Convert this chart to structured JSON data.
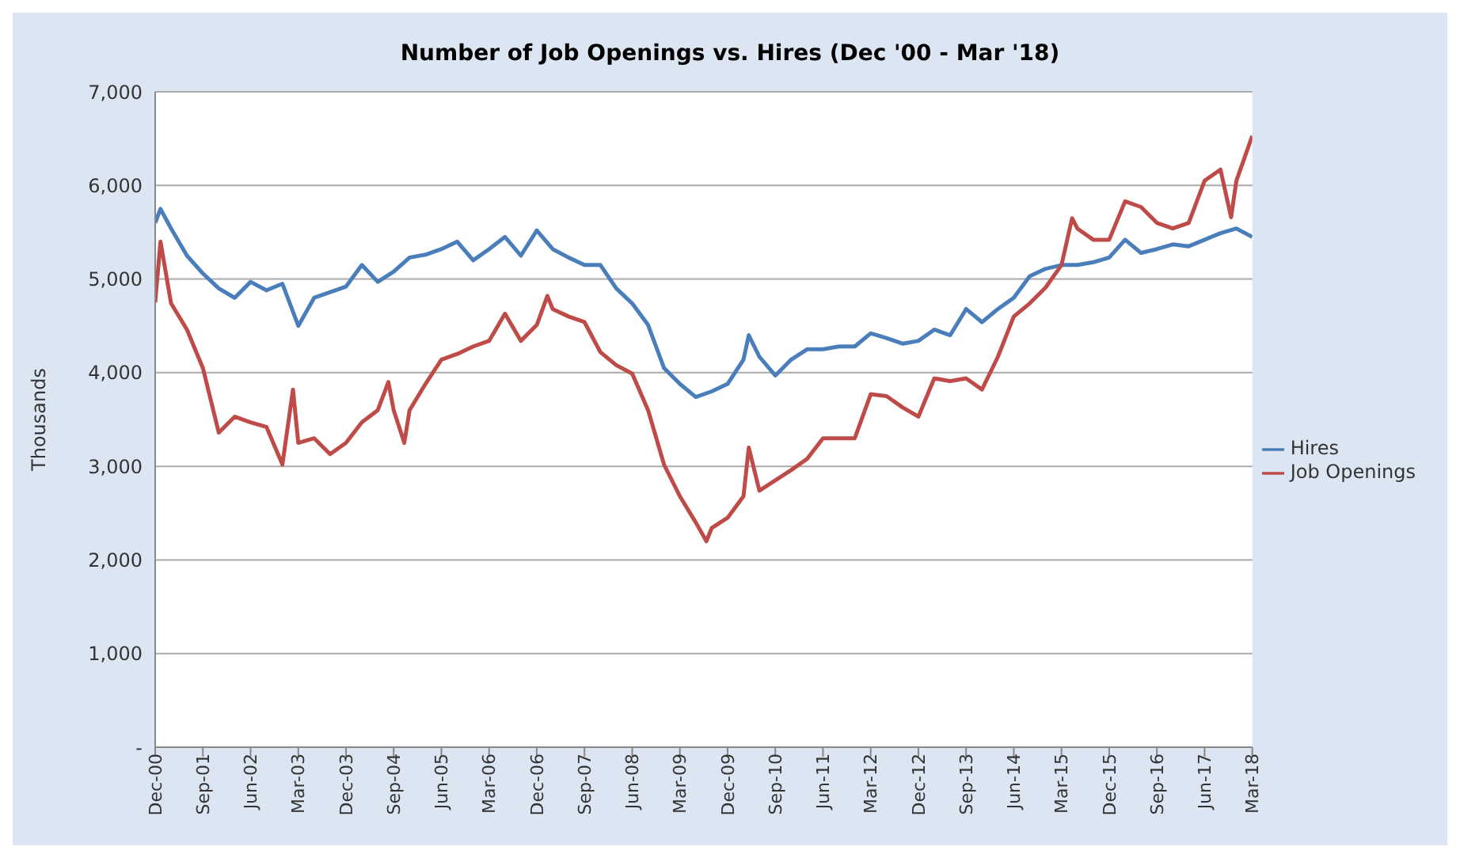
{
  "chart_data": {
    "type": "line",
    "title": "Number of Job Openings vs. Hires (Dec '00 - Mar '18)",
    "ylabel": "Thousands",
    "xlim": [
      "2000-12",
      "2018-03"
    ],
    "xticks": [
      {
        "value": "2000-12",
        "label": "Dec-00"
      },
      {
        "value": "2001-09",
        "label": "Sep-01"
      },
      {
        "value": "2002-06",
        "label": "Jun-02"
      },
      {
        "value": "2003-03",
        "label": "Mar-03"
      },
      {
        "value": "2003-12",
        "label": "Dec-03"
      },
      {
        "value": "2004-09",
        "label": "Sep-04"
      },
      {
        "value": "2005-06",
        "label": "Jun-05"
      },
      {
        "value": "2006-03",
        "label": "Mar-06"
      },
      {
        "value": "2006-12",
        "label": "Dec-06"
      },
      {
        "value": "2007-09",
        "label": "Sep-07"
      },
      {
        "value": "2008-06",
        "label": "Jun-08"
      },
      {
        "value": "2009-03",
        "label": "Mar-09"
      },
      {
        "value": "2009-12",
        "label": "Dec-09"
      },
      {
        "value": "2010-09",
        "label": "Sep-10"
      },
      {
        "value": "2011-06",
        "label": "Jun-11"
      },
      {
        "value": "2012-03",
        "label": "Mar-12"
      },
      {
        "value": "2012-12",
        "label": "Dec-12"
      },
      {
        "value": "2013-09",
        "label": "Sep-13"
      },
      {
        "value": "2014-06",
        "label": "Jun-14"
      },
      {
        "value": "2015-03",
        "label": "Mar-15"
      },
      {
        "value": "2015-12",
        "label": "Dec-15"
      },
      {
        "value": "2016-09",
        "label": "Sep-16"
      },
      {
        "value": "2017-06",
        "label": "Jun-17"
      },
      {
        "value": "2018-03",
        "label": "Mar-18"
      }
    ],
    "ylim": [
      0,
      7000
    ],
    "yticks": [
      {
        "value": 0,
        "label": "-"
      },
      {
        "value": 1000,
        "label": "1,000"
      },
      {
        "value": 2000,
        "label": "2,000"
      },
      {
        "value": 3000,
        "label": "3,000"
      },
      {
        "value": 4000,
        "label": "4,000"
      },
      {
        "value": 5000,
        "label": "5,000"
      },
      {
        "value": 6000,
        "label": "6,000"
      },
      {
        "value": 7000,
        "label": "7,000"
      }
    ],
    "grid": "y",
    "legend": "right",
    "marker": "none",
    "line_style": "solid",
    "series": [
      {
        "name": "Hires",
        "color": "#4a7ebb",
        "x": [
          "2000-12",
          "2001-01",
          "2001-03",
          "2001-06",
          "2001-09",
          "2001-12",
          "2002-03",
          "2002-06",
          "2002-09",
          "2002-12",
          "2003-03",
          "2003-06",
          "2003-09",
          "2003-12",
          "2004-03",
          "2004-06",
          "2004-09",
          "2004-12",
          "2005-03",
          "2005-06",
          "2005-09",
          "2005-12",
          "2006-03",
          "2006-06",
          "2006-09",
          "2006-12",
          "2007-03",
          "2007-06",
          "2007-09",
          "2007-12",
          "2008-03",
          "2008-06",
          "2008-09",
          "2008-12",
          "2009-03",
          "2009-06",
          "2009-09",
          "2009-12",
          "2010-03",
          "2010-04",
          "2010-06",
          "2010-09",
          "2010-12",
          "2011-03",
          "2011-06",
          "2011-09",
          "2011-12",
          "2012-03",
          "2012-06",
          "2012-09",
          "2012-12",
          "2013-03",
          "2013-06",
          "2013-09",
          "2013-12",
          "2014-03",
          "2014-06",
          "2014-09",
          "2014-12",
          "2015-03",
          "2015-06",
          "2015-09",
          "2015-12",
          "2016-03",
          "2016-06",
          "2016-09",
          "2016-12",
          "2017-03",
          "2017-06",
          "2017-09",
          "2017-12",
          "2018-03"
        ],
        "values": [
          5600,
          5750,
          5540,
          5250,
          5060,
          4900,
          4800,
          4970,
          4880,
          4950,
          4500,
          4800,
          4860,
          4920,
          5150,
          4970,
          5080,
          5230,
          5260,
          5320,
          5400,
          5200,
          5320,
          5450,
          5250,
          5520,
          5320,
          5230,
          5150,
          5150,
          4900,
          4740,
          4510,
          4050,
          3880,
          3740,
          3800,
          3880,
          4140,
          4400,
          4170,
          3970,
          4140,
          4250,
          4250,
          4280,
          4280,
          4420,
          4370,
          4310,
          4340,
          4460,
          4400,
          4680,
          4540,
          4680,
          4800,
          5030,
          5110,
          5150,
          5150,
          5180,
          5230,
          5420,
          5280,
          5320,
          5370,
          5350,
          5420,
          5490,
          5540,
          5450
        ]
      },
      {
        "name": "Job Openings",
        "color": "#be4b48",
        "x": [
          "2000-12",
          "2001-01",
          "2001-03",
          "2001-06",
          "2001-09",
          "2001-12",
          "2002-03",
          "2002-06",
          "2002-09",
          "2002-12",
          "2003-02",
          "2003-03",
          "2003-06",
          "2003-09",
          "2003-12",
          "2004-03",
          "2004-06",
          "2004-08",
          "2004-09",
          "2004-11",
          "2004-12",
          "2005-03",
          "2005-06",
          "2005-09",
          "2005-12",
          "2006-03",
          "2006-06",
          "2006-09",
          "2006-12",
          "2007-02",
          "2007-03",
          "2007-06",
          "2007-09",
          "2007-12",
          "2008-03",
          "2008-06",
          "2008-09",
          "2008-12",
          "2009-03",
          "2009-06",
          "2009-08",
          "2009-09",
          "2009-12",
          "2010-03",
          "2010-04",
          "2010-06",
          "2010-09",
          "2010-12",
          "2011-03",
          "2011-06",
          "2011-09",
          "2011-12",
          "2012-03",
          "2012-06",
          "2012-09",
          "2012-12",
          "2013-03",
          "2013-06",
          "2013-09",
          "2013-12",
          "2014-03",
          "2014-06",
          "2014-09",
          "2014-12",
          "2015-03",
          "2015-05",
          "2015-06",
          "2015-09",
          "2015-12",
          "2016-03",
          "2016-06",
          "2016-09",
          "2016-12",
          "2017-03",
          "2017-06",
          "2017-09",
          "2017-11",
          "2017-12",
          "2018-03"
        ],
        "values": [
          4750,
          5400,
          4740,
          4460,
          4050,
          3360,
          3530,
          3470,
          3420,
          3020,
          3820,
          3250,
          3300,
          3130,
          3250,
          3470,
          3600,
          3900,
          3600,
          3250,
          3600,
          3880,
          4140,
          4200,
          4280,
          4340,
          4630,
          4340,
          4510,
          4820,
          4680,
          4600,
          4540,
          4220,
          4080,
          3990,
          3600,
          3020,
          2680,
          2400,
          2200,
          2340,
          2450,
          2680,
          3200,
          2740,
          2850,
          2960,
          3080,
          3300,
          3300,
          3300,
          3770,
          3750,
          3630,
          3530,
          3940,
          3910,
          3940,
          3820,
          4170,
          4600,
          4740,
          4910,
          5150,
          5650,
          5540,
          5420,
          5420,
          5830,
          5770,
          5600,
          5540,
          5600,
          6050,
          6170,
          5660,
          6050,
          6530
        ]
      }
    ]
  }
}
